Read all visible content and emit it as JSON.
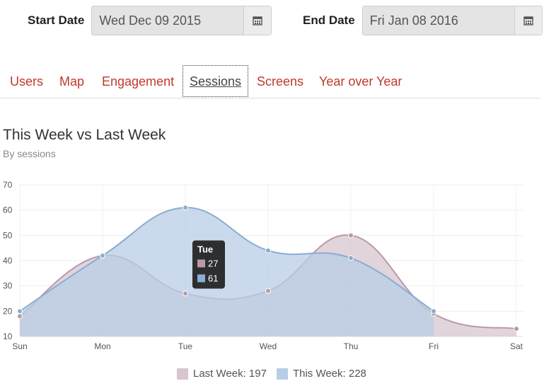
{
  "filters": {
    "start_label": "Start Date",
    "start_value": "Wed Dec 09 2015",
    "end_label": "End Date",
    "end_value": "Fri Jan 08 2016",
    "calendar_icon": "calendar-icon"
  },
  "tabs": [
    {
      "label": "Users",
      "active": false
    },
    {
      "label": "Map",
      "active": false
    },
    {
      "label": "Engagement",
      "active": false
    },
    {
      "label": "Sessions",
      "active": true
    },
    {
      "label": "Screens",
      "active": false
    },
    {
      "label": "Year over Year",
      "active": false
    }
  ],
  "chart": {
    "title": "This Week vs Last Week",
    "subtitle": "By sessions"
  },
  "legend": {
    "last_week": "Last Week: 197",
    "this_week": "This Week: 228"
  },
  "tooltip": {
    "title": "Tue",
    "last_week_value": "27",
    "this_week_value": "61"
  },
  "colors": {
    "accent": "#c0392b",
    "last_week_stroke": "#b89aaa",
    "last_week_fill": "#d8c5cf",
    "this_week_stroke": "#8aadd1",
    "this_week_fill": "#b8cde5"
  },
  "chart_data": {
    "type": "area",
    "categories": [
      "Sun",
      "Mon",
      "Tue",
      "Wed",
      "Thu",
      "Fri",
      "Sat"
    ],
    "series": [
      {
        "name": "Last Week",
        "values": [
          18,
          42,
          27,
          28,
          50,
          19,
          13
        ]
      },
      {
        "name": "This Week",
        "values": [
          20,
          42,
          61,
          44,
          41,
          20,
          null
        ]
      }
    ],
    "yticks": [
      10,
      20,
      30,
      40,
      50,
      60,
      70
    ],
    "ylim": [
      10,
      70
    ],
    "grid": true,
    "legend_position": "bottom"
  }
}
